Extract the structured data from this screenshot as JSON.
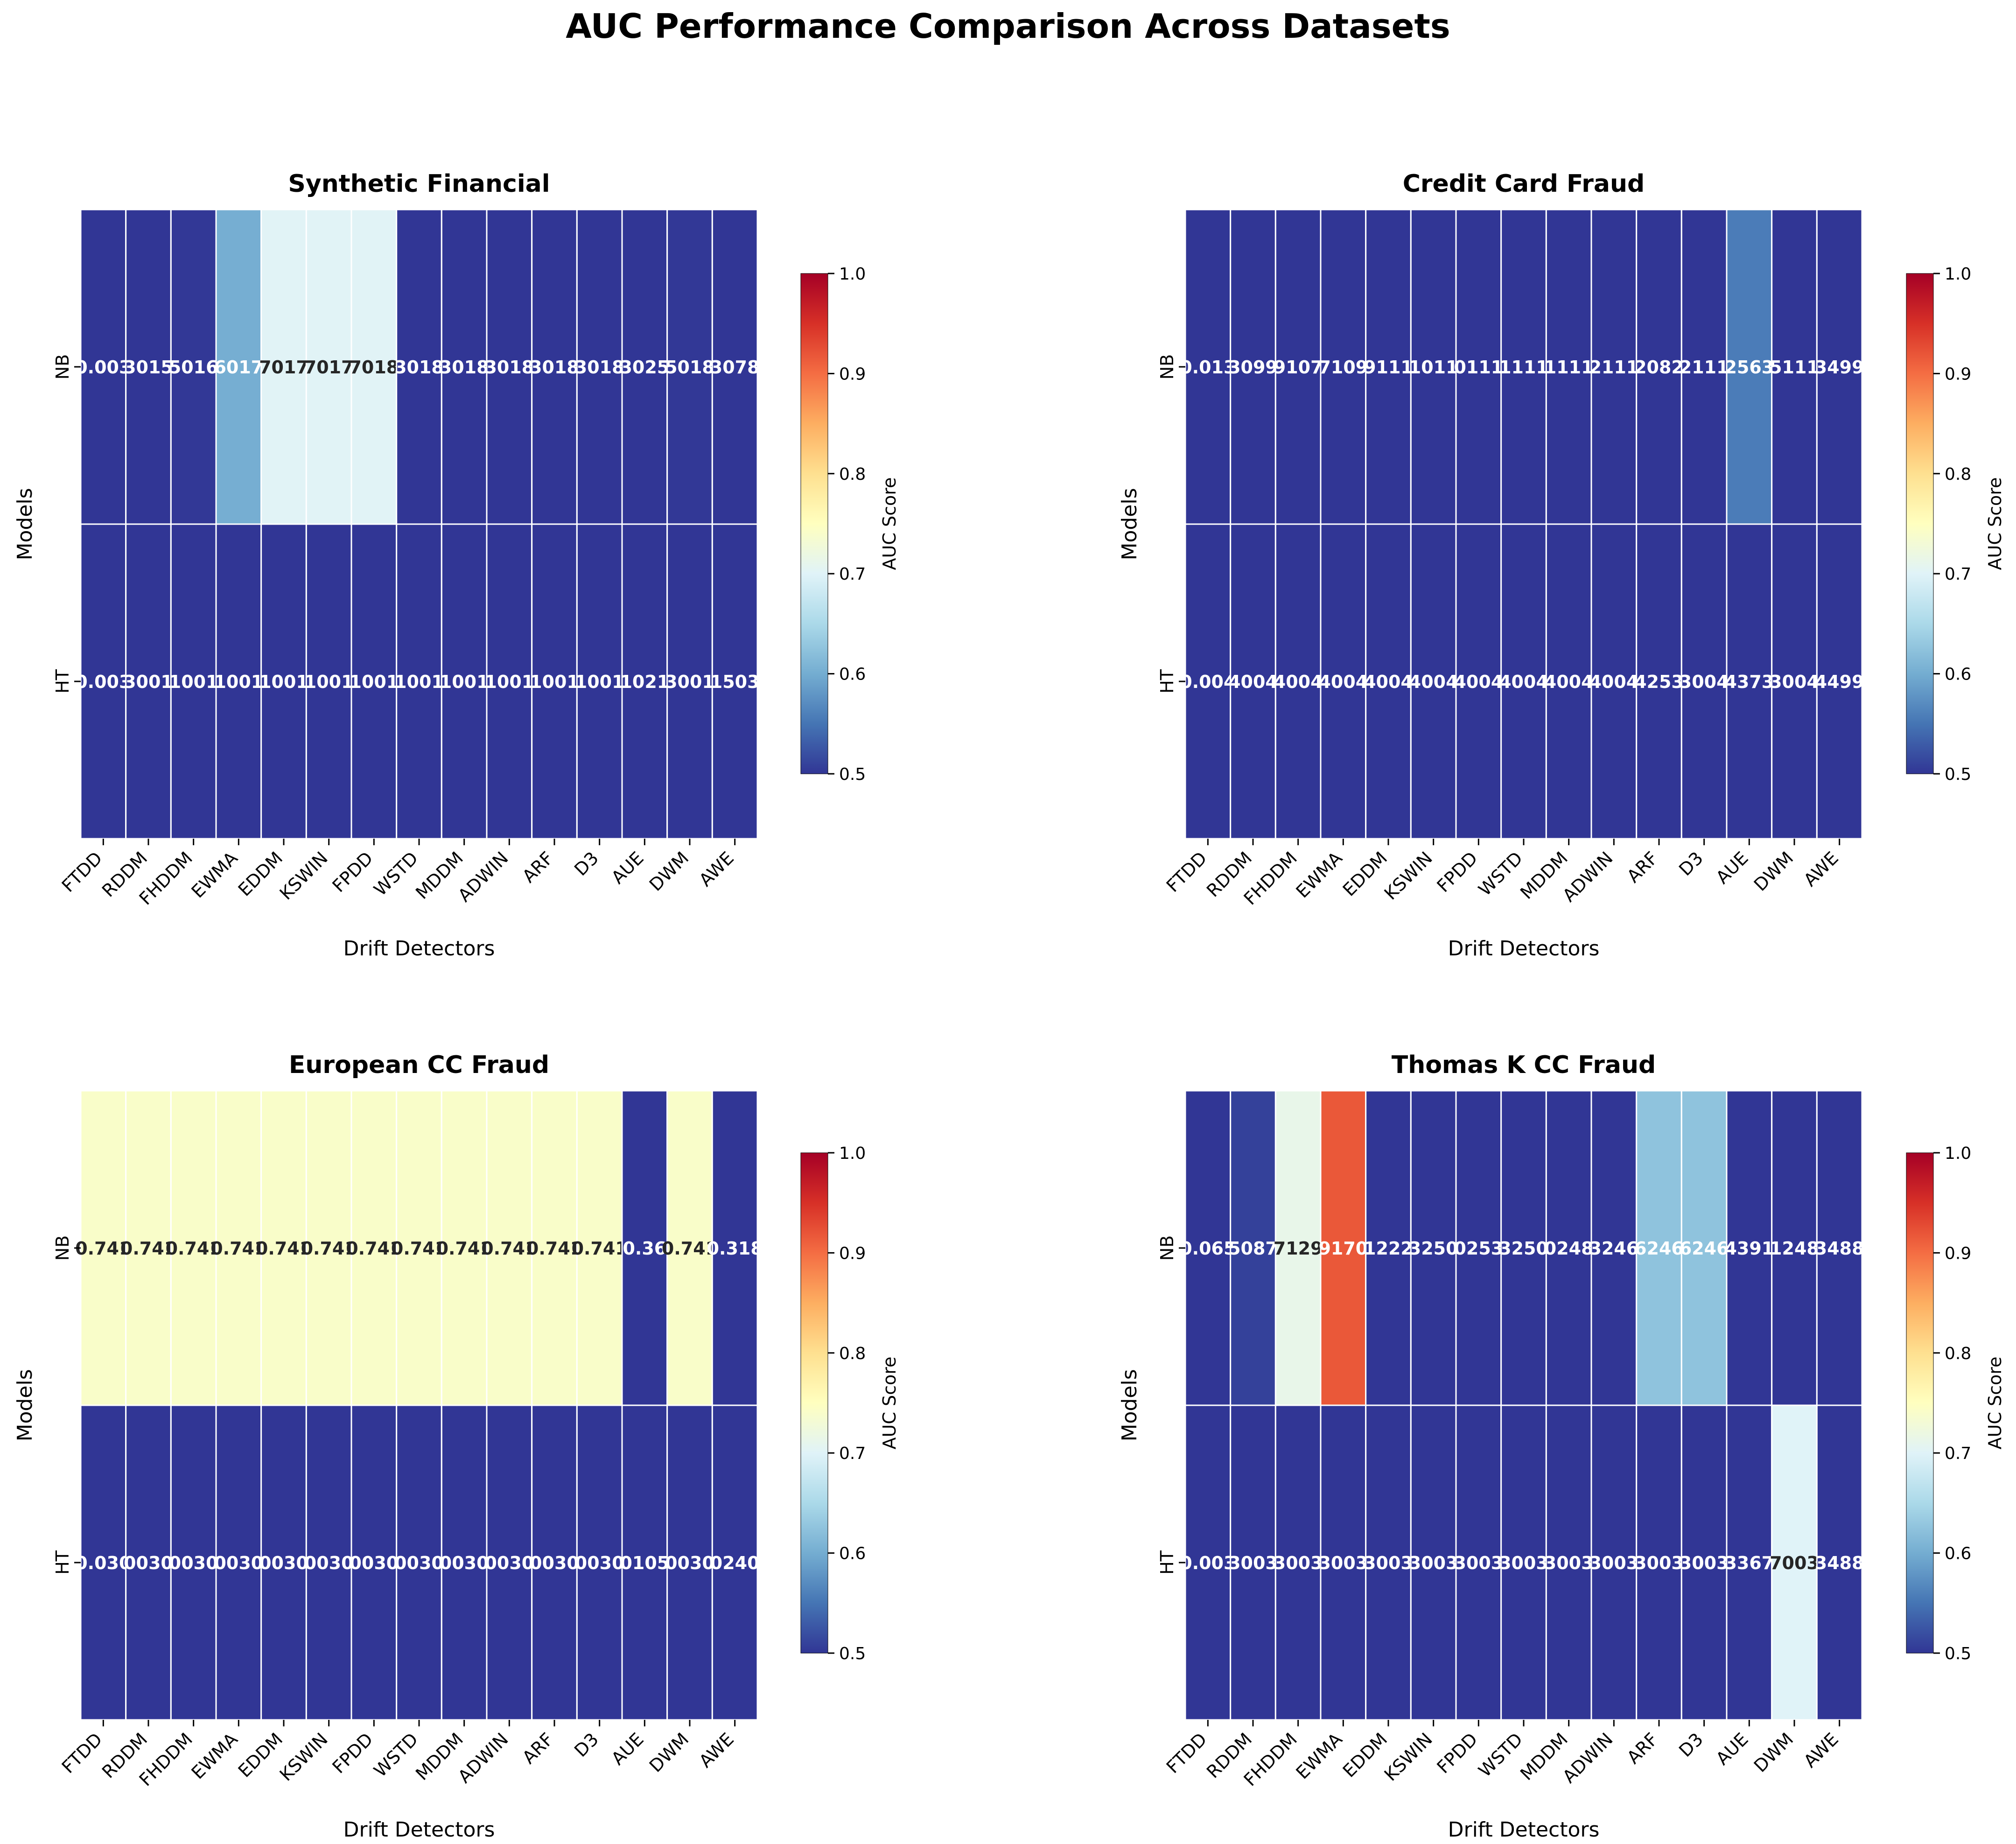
{
  "figure": {
    "title": "AUC Performance Comparison Across Datasets"
  },
  "colormap": {
    "name": "RdYlBu_r",
    "stops": [
      "#313695",
      "#4575b4",
      "#74add1",
      "#abd9e9",
      "#e0f3f8",
      "#ffffbf",
      "#fee090",
      "#fdae61",
      "#f46d43",
      "#d73027",
      "#a50026"
    ]
  },
  "chart_data": [
    {
      "type": "heatmap",
      "title": "Synthetic Financial",
      "xlabel": "Drift Detectors",
      "ylabel": "Models",
      "x": [
        "FTDD",
        "RDDM",
        "FHDDM",
        "EWMA",
        "EDDM",
        "KSWIN",
        "FPDD",
        "WSTD",
        "MDDM",
        "ADWIN",
        "ARF",
        "D3",
        "AUE",
        "DWM",
        "AWE"
      ],
      "y": [
        "NB",
        "HT"
      ],
      "values": [
        [
          0.003,
          0.3015,
          0.5016,
          0.6017,
          0.7017,
          0.7017,
          0.7018,
          0.3018,
          0.3018,
          0.3018,
          0.3018,
          0.3018,
          0.3025,
          0.5018,
          0.3078
        ],
        [
          0.003,
          0.3001,
          0.1001,
          0.1001,
          0.1001,
          0.1001,
          0.1001,
          0.1001,
          0.1001,
          0.1001,
          0.1001,
          0.1001,
          0.1021,
          0.3001,
          0.1503
        ]
      ],
      "cell_labels": [
        [
          "0.003",
          "3015",
          "5016",
          "6017",
          "7017",
          "7017",
          "7018",
          "3018",
          "3018",
          "3018",
          "3018",
          "3018",
          "3025",
          "5018",
          "3078"
        ],
        [
          "0.003",
          "3001",
          "1001",
          "1001",
          "1001",
          "1001",
          "1001",
          "1001",
          "1001",
          "1001",
          "1001",
          "1001",
          "1021",
          "3001",
          "1503"
        ]
      ],
      "colorbar": {
        "label": "AUC Score",
        "range": [
          0.5,
          1.0
        ],
        "ticks": [
          "0.5",
          "0.6",
          "0.7",
          "0.8",
          "0.9",
          "1.0"
        ]
      }
    },
    {
      "type": "heatmap",
      "title": "Credit Card Fraud",
      "xlabel": "Drift Detectors",
      "ylabel": "Models",
      "x": [
        "FTDD",
        "RDDM",
        "FHDDM",
        "EWMA",
        "EDDM",
        "KSWIN",
        "FPDD",
        "WSTD",
        "MDDM",
        "ADWIN",
        "ARF",
        "D3",
        "AUE",
        "DWM",
        "AWE"
      ],
      "y": [
        "NB",
        "HT"
      ],
      "values": [
        [
          0.013,
          0.3099,
          0.9107,
          0.7109,
          0.9111,
          0.1011,
          0.0111,
          0.1111,
          0.1111,
          0.2111,
          0.2082,
          0.2111,
          0.2563,
          0.5111,
          0.3499
        ],
        [
          0.004,
          0.4004,
          0.4004,
          0.4004,
          0.4004,
          0.4004,
          0.4004,
          0.4004,
          0.4004,
          0.4004,
          0.4253,
          0.3004,
          0.4373,
          0.3004,
          0.4499
        ]
      ],
      "cell_colors_auc": [
        [
          0.5,
          0.5,
          0.5,
          0.5,
          0.5,
          0.5,
          0.5,
          0.5,
          0.5,
          0.5,
          0.5,
          0.5,
          0.5563,
          0.5,
          0.5
        ],
        [
          0.5,
          0.5,
          0.5,
          0.5,
          0.5,
          0.5,
          0.5,
          0.5,
          0.5,
          0.5,
          0.5,
          0.5,
          0.5,
          0.5,
          0.5
        ]
      ],
      "cell_labels": [
        [
          "0.013",
          "3099",
          "9107",
          "7109",
          "9111",
          "1011",
          "0111",
          "1111",
          "1111",
          "2111",
          "2082",
          "2111",
          "2563",
          "5111",
          "3499"
        ],
        [
          "0.004",
          "4004",
          "4004",
          "4004",
          "4004",
          "4004",
          "4004",
          "4004",
          "4004",
          "4004",
          "4253",
          "3004",
          "4373",
          "3004",
          "4499"
        ]
      ],
      "colorbar": {
        "label": "AUC Score",
        "range": [
          0.5,
          1.0
        ],
        "ticks": [
          "0.5",
          "0.6",
          "0.7",
          "0.8",
          "0.9",
          "1.0"
        ]
      }
    },
    {
      "type": "heatmap",
      "title": "European CC Fraud",
      "xlabel": "Drift Detectors",
      "ylabel": "Models",
      "x": [
        "FTDD",
        "RDDM",
        "FHDDM",
        "EWMA",
        "EDDM",
        "KSWIN",
        "FPDD",
        "WSTD",
        "MDDM",
        "ADWIN",
        "ARF",
        "D3",
        "AUE",
        "DWM",
        "AWE"
      ],
      "y": [
        "NB",
        "HT"
      ],
      "values": [
        [
          0.741,
          0.741,
          0.741,
          0.741,
          0.741,
          0.741,
          0.741,
          0.741,
          0.741,
          0.741,
          0.741,
          0.741,
          0.36,
          0.741,
          0.318
        ],
        [
          0.03,
          0.03,
          0.03,
          0.03,
          0.03,
          0.03,
          0.03,
          0.03,
          0.03,
          0.03,
          0.03,
          0.03,
          0.105,
          0.03,
          0.024
        ]
      ],
      "cell_labels": [
        [
          "0.741",
          "0.741",
          "0.741",
          "0.741",
          "0.741",
          "0.741",
          "0.741",
          "0.741",
          "0.741",
          "0.741",
          "0.741",
          "0.741",
          "0.36",
          "0.741",
          "0.318"
        ],
        [
          "0.030",
          "0030",
          "0030",
          "0030",
          "0030",
          "0030",
          "0030",
          "0030",
          "0030",
          "0030",
          "0030",
          "0030",
          "0105",
          "0030",
          "0240"
        ]
      ],
      "colorbar": {
        "label": "AUC Score",
        "range": [
          0.5,
          1.0
        ],
        "ticks": [
          "0.5",
          "0.6",
          "0.7",
          "0.8",
          "0.9",
          "1.0"
        ]
      }
    },
    {
      "type": "heatmap",
      "title": "Thomas K CC Fraud",
      "xlabel": "Drift Detectors",
      "ylabel": "Models",
      "x": [
        "FTDD",
        "RDDM",
        "FHDDM",
        "EWMA",
        "EDDM",
        "KSWIN",
        "FPDD",
        "WSTD",
        "MDDM",
        "ADWIN",
        "ARF",
        "D3",
        "AUE",
        "DWM",
        "AWE"
      ],
      "y": [
        "NB",
        "HT"
      ],
      "values": [
        [
          0.065,
          0.5087,
          0.7129,
          0.917,
          0.1222,
          0.325,
          0.0253,
          0.325,
          0.0248,
          0.3246,
          0.6246,
          0.6246,
          0.4391,
          0.1248,
          0.3488
        ],
        [
          0.003,
          0.3003,
          0.3003,
          0.3003,
          0.3003,
          0.3003,
          0.3003,
          0.3003,
          0.3003,
          0.3003,
          0.3003,
          0.3003,
          0.3367,
          0.7003,
          0.3488
        ]
      ],
      "cell_labels": [
        [
          "0.065",
          "5087",
          "7129",
          "9170",
          "1222",
          "3250",
          "0253",
          "3250",
          "0248",
          "3246",
          "6246",
          "6246",
          "4391",
          "1248",
          "3488"
        ],
        [
          "0.003",
          "3003",
          "3003",
          "3003",
          "3003",
          "3003",
          "3003",
          "3003",
          "3003",
          "3003",
          "3003",
          "3003",
          "3367",
          "7003",
          "3488"
        ]
      ],
      "colorbar": {
        "label": "AUC Score",
        "range": [
          0.5,
          1.0
        ],
        "ticks": [
          "0.5",
          "0.6",
          "0.7",
          "0.8",
          "0.9",
          "1.0"
        ]
      }
    }
  ]
}
